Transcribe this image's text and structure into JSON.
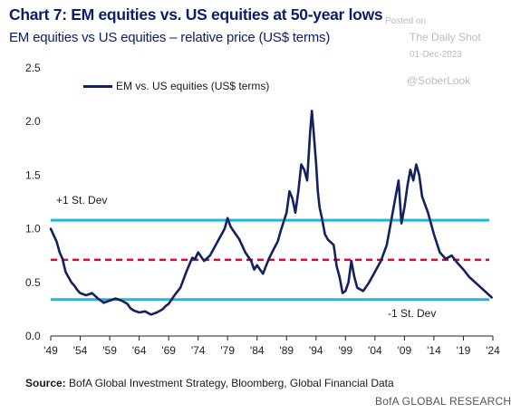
{
  "header": {
    "title": "Chart 7: EM equities vs. US equities at 50-year lows",
    "subtitle": "EM equities vs US equities – relative price (US$ terms)"
  },
  "watermark": {
    "posted": "Posted on",
    "source": "The Daily Shot",
    "date": "01-Dec-2023",
    "handle": "@SoberLook"
  },
  "footer": {
    "source_label": "Source:",
    "source_text": "BofA Global Investment Strategy, Bloomberg, Global Financial Data",
    "brand": "BofA GLOBAL RESEARCH"
  },
  "colors": {
    "series": "#14215e",
    "band": "#1fb8dc",
    "mean": "#c8102e",
    "title": "#0a1f66"
  },
  "chart_data": {
    "type": "line",
    "title": "Chart 7: EM equities vs. US equities at 50-year lows",
    "subtitle": "EM equities vs US equities – relative price (US$ terms)",
    "xlim": [
      1949,
      2024
    ],
    "ylim": [
      0,
      2.5
    ],
    "x_ticks": [
      "'49",
      "'54",
      "'59",
      "'64",
      "'69",
      "'74",
      "'79",
      "'84",
      "'89",
      "'94",
      "'99",
      "'04",
      "'09",
      "'14",
      "'19",
      "'24"
    ],
    "x_tick_values": [
      1949,
      1954,
      1959,
      1964,
      1969,
      1974,
      1979,
      1984,
      1989,
      1994,
      1999,
      2004,
      2009,
      2014,
      2019,
      2024
    ],
    "y_ticks": [
      "0.0",
      "0.5",
      "1.0",
      "1.5",
      "2.0",
      "2.5"
    ],
    "y_tick_values": [
      0,
      0.5,
      1.0,
      1.5,
      2.0,
      2.5
    ],
    "legend": "top-left",
    "grid": false,
    "reference_lines": [
      {
        "name": "+1 St. Dev",
        "value": 1.08,
        "style": "solid"
      },
      {
        "name": "mean",
        "value": 0.71,
        "style": "dashed"
      },
      {
        "name": "-1 St. Dev",
        "value": 0.34,
        "style": "solid"
      }
    ],
    "annotations": [
      {
        "text": "+1 St. Dev"
      },
      {
        "text": "-1 St. Dev"
      }
    ],
    "series": [
      {
        "name": "EM vs. US equities (US$ terms)",
        "x": [
          1949,
          1950,
          1950.5,
          1951,
          1951.5,
          1952,
          1952.5,
          1953,
          1953.5,
          1954,
          1955,
          1956,
          1957,
          1958,
          1959,
          1960,
          1961,
          1962,
          1962.5,
          1963,
          1964,
          1965,
          1966,
          1967,
          1968,
          1968.5,
          1969,
          1970,
          1971,
          1972,
          1973,
          1973.5,
          1974,
          1975,
          1976,
          1977,
          1978,
          1978.5,
          1979,
          1979.5,
          1980,
          1981,
          1982,
          1983,
          1983.5,
          1984,
          1985,
          1986,
          1987,
          1987.5,
          1988,
          1989,
          1989.5,
          1990,
          1990.5,
          1991,
          1991.5,
          1992,
          1992.5,
          1993,
          1993.3,
          1993.6,
          1994,
          1994.3,
          1994.6,
          1995,
          1995.5,
          1996,
          1997,
          1997.5,
          1998,
          1998.5,
          1999,
          1999.5,
          2000,
          2000.5,
          2001,
          2002,
          2003,
          2004,
          2005,
          2006,
          2007,
          2007.5,
          2008,
          2008.5,
          2009,
          2009.5,
          2010,
          2010.5,
          2011,
          2011.5,
          2012,
          2013,
          2014,
          2015,
          2016,
          2017,
          2018,
          2019,
          2020,
          2021,
          2022,
          2023,
          2023.8
        ],
        "values": [
          1.0,
          0.88,
          0.78,
          0.72,
          0.6,
          0.55,
          0.5,
          0.47,
          0.43,
          0.4,
          0.38,
          0.4,
          0.35,
          0.31,
          0.33,
          0.35,
          0.33,
          0.3,
          0.26,
          0.24,
          0.22,
          0.23,
          0.2,
          0.22,
          0.25,
          0.28,
          0.3,
          0.38,
          0.45,
          0.6,
          0.73,
          0.72,
          0.78,
          0.7,
          0.75,
          0.85,
          0.95,
          1.0,
          1.1,
          1.02,
          0.98,
          0.9,
          0.78,
          0.7,
          0.62,
          0.66,
          0.58,
          0.72,
          0.83,
          0.88,
          0.98,
          1.15,
          1.35,
          1.28,
          1.15,
          1.35,
          1.6,
          1.55,
          1.45,
          1.9,
          2.1,
          1.9,
          1.62,
          1.35,
          1.2,
          1.1,
          0.95,
          0.9,
          0.85,
          0.65,
          0.55,
          0.4,
          0.42,
          0.5,
          0.7,
          0.55,
          0.45,
          0.42,
          0.5,
          0.6,
          0.7,
          0.85,
          1.15,
          1.3,
          1.45,
          1.05,
          1.2,
          1.4,
          1.55,
          1.45,
          1.6,
          1.5,
          1.3,
          1.15,
          0.95,
          0.78,
          0.72,
          0.75,
          0.68,
          0.62,
          0.55,
          0.5,
          0.45,
          0.4,
          0.36
        ]
      }
    ]
  }
}
